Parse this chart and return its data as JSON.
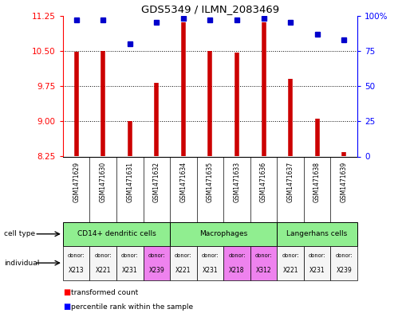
{
  "title": "GDS5349 / ILMN_2083469",
  "samples": [
    "GSM1471629",
    "GSM1471630",
    "GSM1471631",
    "GSM1471632",
    "GSM1471634",
    "GSM1471635",
    "GSM1471633",
    "GSM1471636",
    "GSM1471637",
    "GSM1471638",
    "GSM1471639"
  ],
  "transformed_count": [
    10.48,
    10.49,
    9.0,
    9.82,
    11.1,
    10.49,
    10.47,
    11.1,
    9.9,
    9.05,
    8.35
  ],
  "percentile_rank": [
    97,
    97,
    80,
    95,
    98,
    97,
    97,
    98,
    95,
    87,
    83
  ],
  "ylim": [
    8.25,
    11.25
  ],
  "yticks": [
    8.25,
    9.0,
    9.75,
    10.5,
    11.25
  ],
  "right_yticks": [
    0,
    25,
    50,
    75,
    100
  ],
  "right_ylim": [
    0,
    100
  ],
  "cell_type_spans": [
    [
      0,
      4,
      "CD14+ dendritic cells"
    ],
    [
      4,
      8,
      "Macrophages"
    ],
    [
      8,
      11,
      "Langerhans cells"
    ]
  ],
  "cell_type_color": "#90ee90",
  "individuals": [
    "X213",
    "X221",
    "X231",
    "X239",
    "X221",
    "X231",
    "X218",
    "X312",
    "X221",
    "X231",
    "X239"
  ],
  "ind_colors": [
    "#f5f5f5",
    "#f5f5f5",
    "#f5f5f5",
    "#ee82ee",
    "#f5f5f5",
    "#f5f5f5",
    "#ee82ee",
    "#ee82ee",
    "#f5f5f5",
    "#f5f5f5",
    "#f5f5f5"
  ],
  "bar_color": "#cc0000",
  "dot_color": "#0000cc",
  "bg_color": "#ffffff",
  "grid_color": "#000000",
  "sample_bg_color": "#d3d3d3",
  "border_color": "#000000"
}
